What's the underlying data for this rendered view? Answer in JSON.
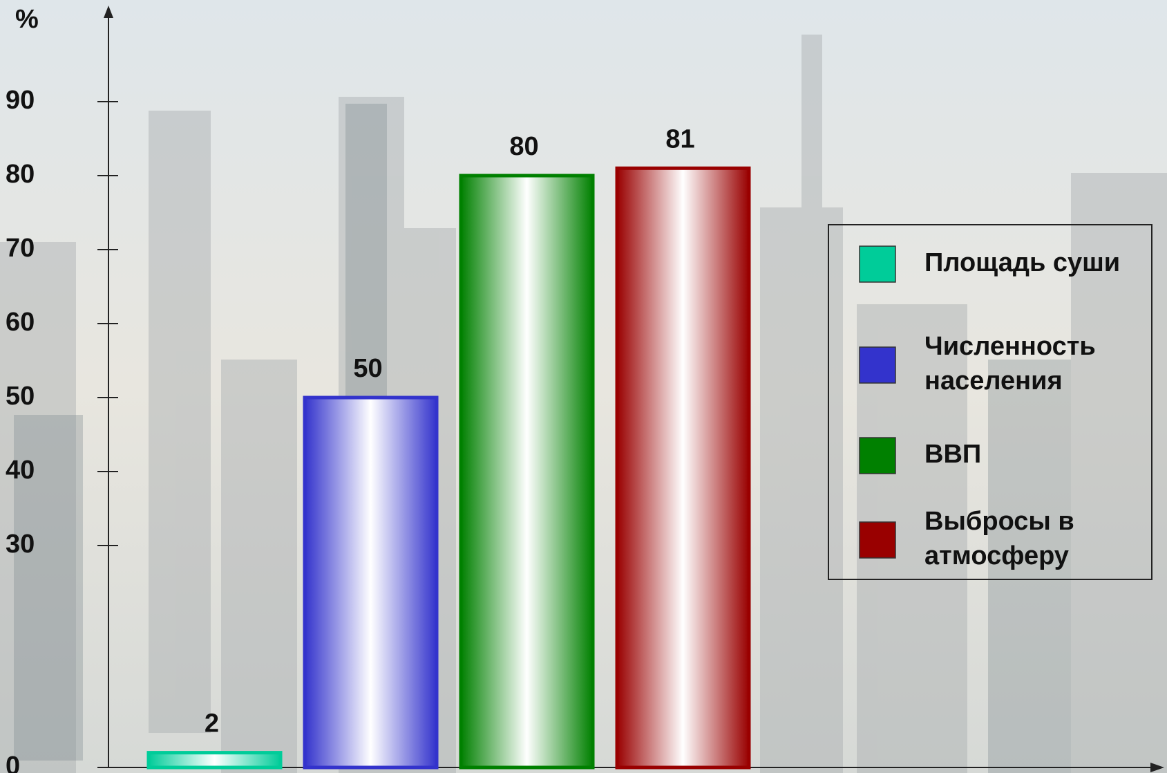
{
  "chart_data": {
    "type": "bar",
    "ylabel": "%",
    "categories": [
      "Площадь суши",
      "Численность населения",
      "ВВП",
      "Выбросы в атмосферу"
    ],
    "values": [
      2,
      50,
      80,
      81
    ],
    "colors": [
      "#00cc99",
      "#3333cc",
      "#008000",
      "#990000"
    ],
    "ylim": [
      0,
      100
    ],
    "yticks": [
      0,
      30,
      40,
      50,
      60,
      70,
      80,
      90
    ],
    "legend": "right"
  }
}
